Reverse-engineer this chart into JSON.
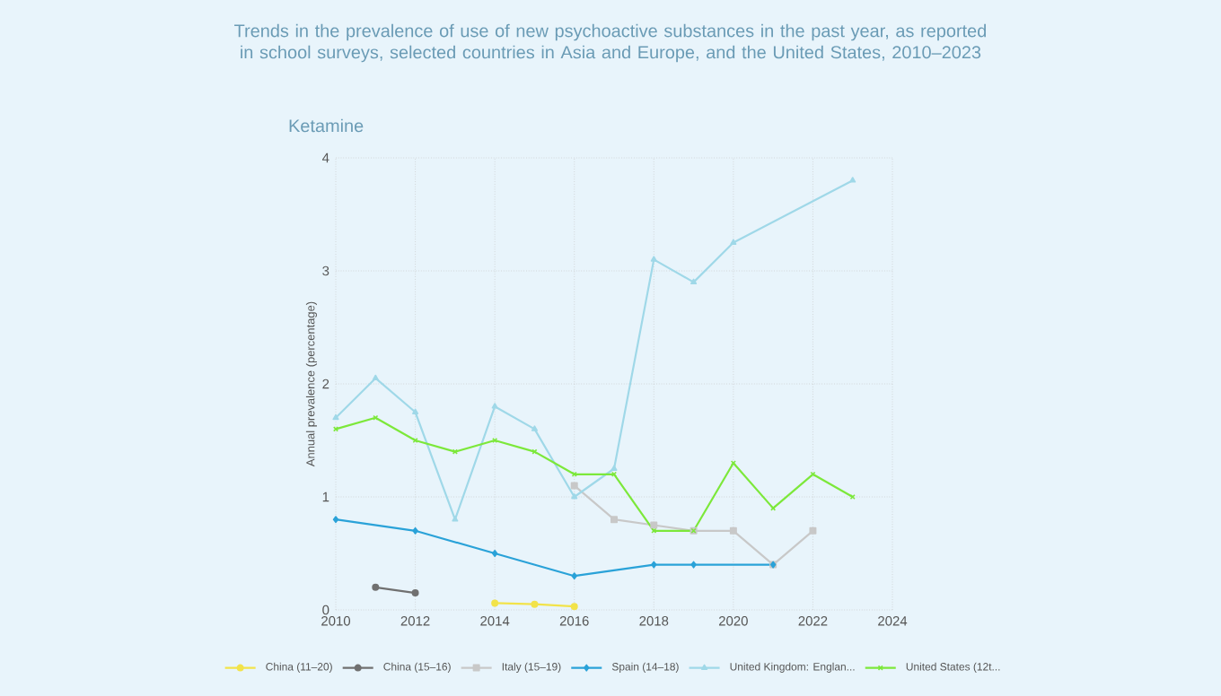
{
  "chart_data": {
    "type": "line",
    "title": "Trends in the prevalence of use of new psychoactive substances in the past year, as reported in school surveys, selected countries in Asia and Europe, and the United States, 2010–2023",
    "subtitle": "Ketamine",
    "ylabel": "Annual prevalence (percentage)",
    "xlim": [
      2010,
      2024
    ],
    "xticks": [
      2010,
      2012,
      2014,
      2016,
      2018,
      2020,
      2022,
      2024
    ],
    "ylim": [
      0,
      4
    ],
    "yticks": [
      0,
      1,
      2,
      3,
      4
    ],
    "grid": true,
    "legend": "bottom",
    "series": [
      {
        "name": "China (11–20)",
        "color": "#f2e34a",
        "marker": "circle",
        "x": [
          2014,
          2015,
          2016
        ],
        "values": [
          0.06,
          0.05,
          0.03
        ]
      },
      {
        "name": "China (15–16)",
        "color": "#707070",
        "marker": "circle",
        "x": [
          2011,
          2012
        ],
        "values": [
          0.2,
          0.15
        ]
      },
      {
        "name": "Italy (15–19)",
        "color": "#c8c8c8",
        "marker": "square",
        "x": [
          2016,
          2017,
          2018,
          2019,
          2020,
          2021,
          2022
        ],
        "values": [
          1.1,
          0.8,
          0.75,
          0.7,
          0.7,
          0.4,
          0.7
        ]
      },
      {
        "name": "Spain (14–18)",
        "color": "#2aa2d8",
        "marker": "diamond",
        "x": [
          2010,
          2012,
          2014,
          2016,
          2018,
          2019,
          2021
        ],
        "values": [
          0.8,
          0.7,
          0.5,
          0.3,
          0.4,
          0.4,
          0.4
        ]
      },
      {
        "name": "United Kingdom: Englan...",
        "color": "#9fd8e8",
        "marker": "triangle",
        "x": [
          2010,
          2011,
          2012,
          2013,
          2014,
          2015,
          2016,
          2017,
          2018,
          2019,
          2020,
          2023
        ],
        "values": [
          1.7,
          2.05,
          1.75,
          0.8,
          1.8,
          1.6,
          1.0,
          1.25,
          3.1,
          2.9,
          3.25,
          3.8
        ]
      },
      {
        "name": "United States (12t...",
        "color": "#7ce83a",
        "marker": "cross",
        "x": [
          2010,
          2011,
          2012,
          2013,
          2014,
          2015,
          2016,
          2017,
          2018,
          2019,
          2020,
          2021,
          2022,
          2023
        ],
        "values": [
          1.6,
          1.7,
          1.5,
          1.4,
          1.5,
          1.4,
          1.2,
          1.2,
          0.7,
          0.7,
          1.3,
          0.9,
          1.2,
          1.0
        ]
      }
    ]
  }
}
